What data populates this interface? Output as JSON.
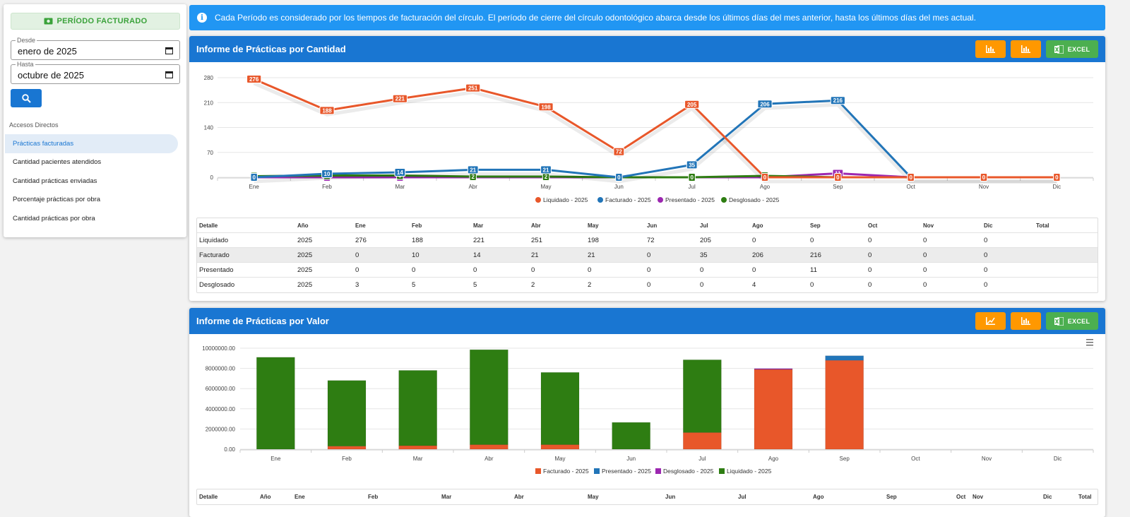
{
  "sidebar": {
    "periodo_label": "PERÍODO FACTURADO",
    "desde": {
      "label": "Desde",
      "value": "enero de 2025"
    },
    "hasta": {
      "label": "Hasta",
      "value": "octubre de 2025"
    },
    "accesos_title": "Accesos Directos",
    "items": [
      {
        "label": "Prácticas facturadas"
      },
      {
        "label": "Cantidad pacientes atendidos"
      },
      {
        "label": "Cantidad prácticas enviadas"
      },
      {
        "label": "Porcentaje prácticas por obra"
      },
      {
        "label": "Cantidad prácticas por obra"
      }
    ]
  },
  "banner": {
    "text": "Cada Período es considerado por los tiempos de facturación del círculo. El período de cierre del círculo odontológico abarca desde los últimos días del mes anterior, hasta los últimos días del mes actual."
  },
  "cantidad": {
    "title": "Informe de Prácticas por Cantidad",
    "excel_label": "EXCEL",
    "table": {
      "headers": [
        "Detalle",
        "Año",
        "Ene",
        "Feb",
        "Mar",
        "Abr",
        "May",
        "Jun",
        "Jul",
        "Ago",
        "Sep",
        "Oct",
        "Nov",
        "Dic",
        "Total"
      ],
      "rows": [
        [
          "Liquidado",
          "2025",
          "276",
          "188",
          "221",
          "251",
          "198",
          "72",
          "205",
          "0",
          "0",
          "0",
          "0",
          "0",
          ""
        ],
        [
          "Facturado",
          "2025",
          "0",
          "10",
          "14",
          "21",
          "21",
          "0",
          "35",
          "206",
          "216",
          "0",
          "0",
          "0",
          ""
        ],
        [
          "Presentado",
          "2025",
          "0",
          "0",
          "0",
          "0",
          "0",
          "0",
          "0",
          "0",
          "11",
          "0",
          "0",
          "0",
          ""
        ],
        [
          "Desglosado",
          "2025",
          "3",
          "5",
          "5",
          "2",
          "2",
          "0",
          "0",
          "4",
          "0",
          "0",
          "0",
          "0",
          ""
        ]
      ]
    }
  },
  "valor": {
    "title": "Informe de Prácticas por Valor",
    "excel_label": "EXCEL",
    "table": {
      "headers": [
        "Detalle",
        "Año",
        "Ene",
        "Feb",
        "Mar",
        "Abr",
        "May",
        "Jun",
        "Jul",
        "Ago",
        "Sep",
        "Oct",
        "Nov",
        "Dic",
        "Total"
      ]
    }
  },
  "colors": {
    "liquidado": "#e8572a",
    "facturado": "#2275b8",
    "presentado": "#9c27b0",
    "desglosado": "#2e7d12",
    "primary": "#1976d2",
    "orange": "#ff9800",
    "green": "#4caf50"
  },
  "chart_data": [
    {
      "type": "line",
      "title": "Informe de Prácticas por Cantidad",
      "categories": [
        "Ene",
        "Feb",
        "Mar",
        "Abr",
        "May",
        "Jun",
        "Jul",
        "Ago",
        "Sep",
        "Oct",
        "Nov",
        "Dic"
      ],
      "ylim": [
        0,
        280
      ],
      "yticks": [
        0,
        70,
        140,
        210,
        280
      ],
      "legend": "bottom",
      "series": [
        {
          "name": "Liquidado - 2025",
          "values": [
            276,
            188,
            221,
            251,
            198,
            72,
            205,
            0,
            0,
            0,
            0,
            0
          ]
        },
        {
          "name": "Facturado - 2025",
          "values": [
            0,
            10,
            14,
            21,
            21,
            0,
            35,
            206,
            216,
            0,
            0,
            0
          ]
        },
        {
          "name": "Presentado - 2025",
          "values": [
            0,
            0,
            0,
            0,
            0,
            0,
            0,
            0,
            11,
            0,
            0,
            0
          ]
        },
        {
          "name": "Desglosado - 2025",
          "values": [
            3,
            5,
            5,
            2,
            2,
            0,
            0,
            4,
            0,
            0,
            0,
            0
          ]
        }
      ]
    },
    {
      "type": "bar",
      "stacked": true,
      "title": "Informe de Prácticas por Valor",
      "categories": [
        "Ene",
        "Feb",
        "Mar",
        "Abr",
        "May",
        "Jun",
        "Jul",
        "Ago",
        "Sep",
        "Oct",
        "Nov",
        "Dic"
      ],
      "ylim": [
        0,
        10000000
      ],
      "ytick_labels": [
        "0.00",
        "2000000.00",
        "4000000.00",
        "6000000.00",
        "8000000.00",
        "10000000.00"
      ],
      "legend": "bottom",
      "series": [
        {
          "name": "Facturado - 2025",
          "values": [
            0,
            300000,
            350000,
            450000,
            450000,
            0,
            1650000,
            7900000,
            8800000,
            0,
            0,
            0
          ]
        },
        {
          "name": "Presentado - 2025",
          "values": [
            0,
            0,
            0,
            0,
            0,
            0,
            0,
            0,
            450000,
            0,
            0,
            0
          ]
        },
        {
          "name": "Desglosado - 2025",
          "values": [
            0,
            0,
            0,
            0,
            0,
            0,
            0,
            80000,
            0,
            0,
            0,
            0
          ]
        },
        {
          "name": "Liquidado - 2025",
          "values": [
            9100000,
            6500000,
            7450000,
            9400000,
            7150000,
            2650000,
            7200000,
            0,
            0,
            0,
            0,
            0
          ]
        }
      ]
    }
  ]
}
